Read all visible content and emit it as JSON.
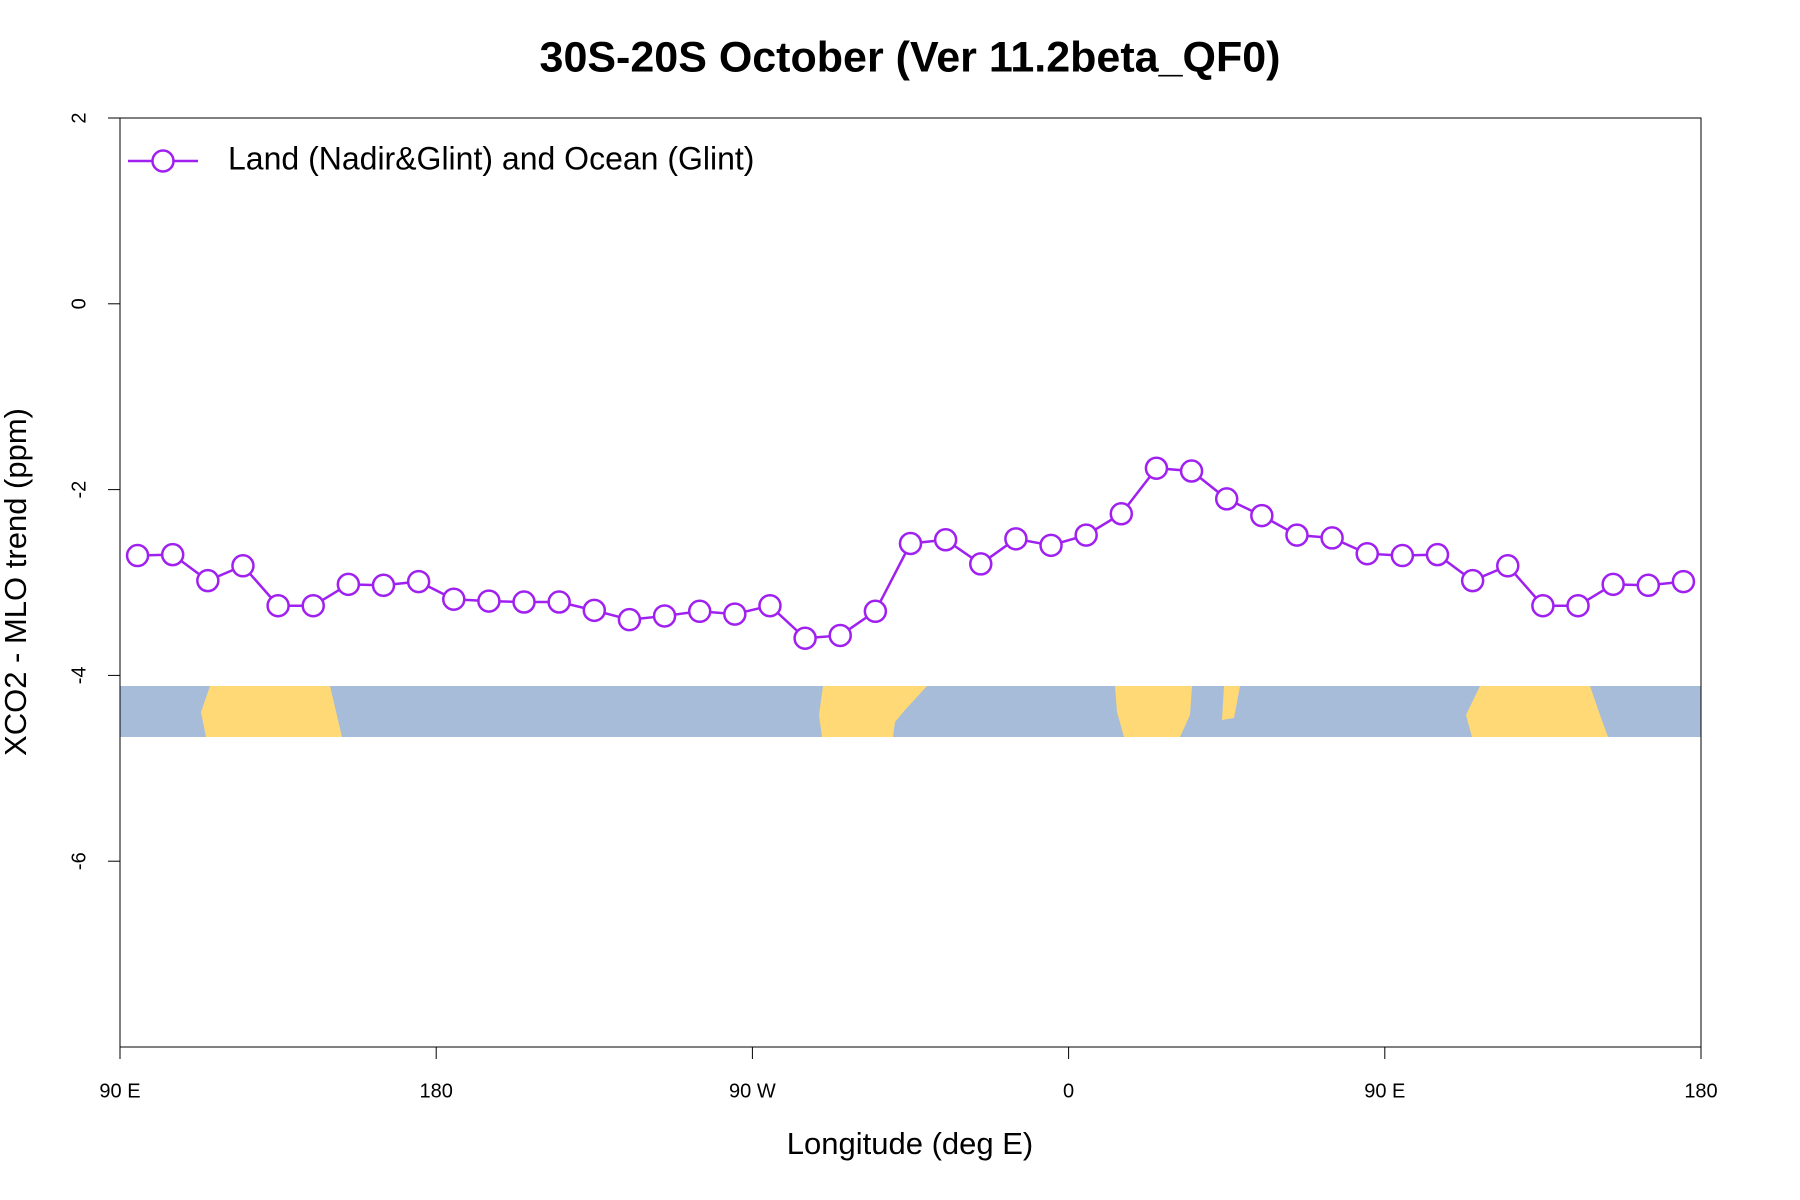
{
  "chart_data": {
    "type": "line",
    "title": "30S-20S October (Ver 11.2beta_QF0)",
    "xlabel": "Longitude (deg E)",
    "ylabel": "XCO2 - MLO trend (ppm)",
    "x": [
      95,
      105,
      115,
      125,
      135,
      145,
      155,
      165,
      175,
      185,
      195,
      205,
      215,
      225,
      235,
      245,
      255,
      265,
      275,
      285,
      295,
      305,
      315,
      325,
      335,
      345,
      355,
      365,
      375,
      385,
      395,
      405,
      415,
      425,
      435,
      445,
      455,
      465,
      475,
      485,
      495,
      505,
      515,
      525,
      535
    ],
    "series": [
      {
        "name": "Land (Nadir&Glint) and Ocean (Glint)",
        "color": "#a020f0",
        "values": [
          -2.71,
          -2.7,
          -2.98,
          -2.82,
          -3.25,
          -3.25,
          -3.02,
          -3.03,
          -2.99,
          -3.18,
          -3.2,
          -3.21,
          -3.21,
          -3.3,
          -3.4,
          -3.36,
          -3.31,
          -3.34,
          -3.25,
          -3.6,
          -3.57,
          -3.31,
          -2.58,
          -2.54,
          -2.8,
          -2.53,
          -2.6,
          -2.49,
          -2.26,
          -1.77,
          -1.8,
          -2.1,
          -2.28,
          -2.49,
          -2.52,
          -2.69,
          -2.71,
          -2.7,
          -2.98,
          -2.82,
          -3.25,
          -3.25,
          -3.02,
          -3.03,
          -2.99
        ]
      }
    ],
    "xlim": [
      90,
      540
    ],
    "xticks": [
      {
        "value": 90,
        "label": "90 E"
      },
      {
        "value": 180,
        "label": "180"
      },
      {
        "value": 270,
        "label": "90 W"
      },
      {
        "value": 360,
        "label": "0"
      },
      {
        "value": 450,
        "label": "90 E"
      },
      {
        "value": 540,
        "label": "180"
      }
    ],
    "ylim": [
      -8,
      2
    ],
    "yticks": [
      2,
      0,
      -2,
      -4,
      -6
    ],
    "legend": "top-left",
    "grid": false
  }
}
